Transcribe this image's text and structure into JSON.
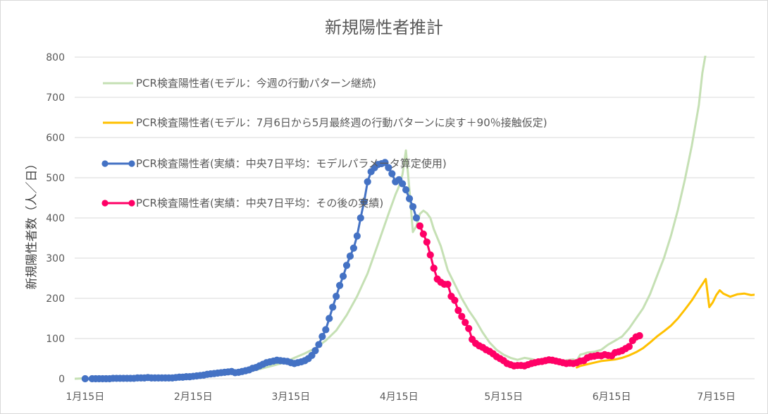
{
  "chart_data": {
    "type": "line",
    "title": "新規陽性者推計",
    "ylabel": "新規陽性者数（人／日）",
    "xlabel": "",
    "ylim": [
      0,
      800
    ],
    "y_ticks": [
      0,
      100,
      200,
      300,
      400,
      500,
      600,
      700,
      800
    ],
    "x_ticks": [
      {
        "label": "1月15日",
        "day": 0
      },
      {
        "label": "2月15日",
        "day": 31
      },
      {
        "label": "3月15日",
        "day": 59
      },
      {
        "label": "4月15日",
        "day": 90
      },
      {
        "label": "5月15日",
        "day": 120
      },
      {
        "label": "6月15日",
        "day": 151
      },
      {
        "label": "7月15日",
        "day": 181
      }
    ],
    "xlim_days": [
      -3,
      192
    ],
    "grid": "horizontal",
    "legend_position": "top-left inside",
    "series": [
      {
        "name": "PCR検査陽性者(モデル：今週の行動パターン継続)",
        "color": "#c5e0b4",
        "style": "line",
        "points": [
          [
            -3,
            0
          ],
          [
            0,
            1
          ],
          [
            10,
            2
          ],
          [
            20,
            3
          ],
          [
            30,
            5
          ],
          [
            40,
            11
          ],
          [
            46,
            16
          ],
          [
            50,
            24
          ],
          [
            54,
            33
          ],
          [
            57,
            40
          ],
          [
            60,
            52
          ],
          [
            63,
            63
          ],
          [
            66,
            76
          ],
          [
            69,
            95
          ],
          [
            72,
            120
          ],
          [
            75,
            158
          ],
          [
            78,
            205
          ],
          [
            81,
            262
          ],
          [
            84,
            335
          ],
          [
            87,
            410
          ],
          [
            89,
            458
          ],
          [
            90,
            478
          ],
          [
            91,
            508
          ],
          [
            92,
            568
          ],
          [
            93,
            470
          ],
          [
            94,
            365
          ],
          [
            95,
            380
          ],
          [
            96,
            410
          ],
          [
            97,
            418
          ],
          [
            98,
            412
          ],
          [
            99,
            400
          ],
          [
            100,
            372
          ],
          [
            102,
            330
          ],
          [
            104,
            270
          ],
          [
            106,
            235
          ],
          [
            108,
            200
          ],
          [
            110,
            170
          ],
          [
            112,
            145
          ],
          [
            114,
            115
          ],
          [
            116,
            90
          ],
          [
            118,
            72
          ],
          [
            120,
            60
          ],
          [
            122,
            52
          ],
          [
            124,
            47
          ],
          [
            126,
            52
          ],
          [
            128,
            49
          ],
          [
            130,
            44
          ],
          [
            132,
            41
          ],
          [
            134,
            40
          ],
          [
            136,
            42
          ],
          [
            138,
            46
          ],
          [
            140,
            48
          ],
          [
            141,
            45
          ],
          [
            142,
            60
          ],
          [
            143,
            62
          ],
          [
            144,
            65
          ],
          [
            146,
            67
          ],
          [
            148,
            72
          ],
          [
            150,
            85
          ],
          [
            152,
            95
          ],
          [
            154,
            105
          ],
          [
            156,
            125
          ],
          [
            158,
            150
          ],
          [
            160,
            175
          ],
          [
            162,
            210
          ],
          [
            164,
            255
          ],
          [
            166,
            300
          ],
          [
            168,
            355
          ],
          [
            170,
            420
          ],
          [
            172,
            495
          ],
          [
            174,
            580
          ],
          [
            176,
            680
          ],
          [
            177,
            760
          ],
          [
            178,
            810
          ]
        ]
      },
      {
        "name": "PCR検査陽性者(モデル：7月6日から5月最終週の行動パターンに戻す＋90％接触仮定)",
        "color": "#ffc000",
        "style": "line",
        "points": [
          [
            141,
            28
          ],
          [
            142,
            32
          ],
          [
            144,
            36
          ],
          [
            146,
            40
          ],
          [
            148,
            44
          ],
          [
            150,
            46
          ],
          [
            152,
            48
          ],
          [
            154,
            52
          ],
          [
            156,
            58
          ],
          [
            158,
            66
          ],
          [
            160,
            76
          ],
          [
            162,
            90
          ],
          [
            164,
            105
          ],
          [
            166,
            118
          ],
          [
            168,
            132
          ],
          [
            170,
            150
          ],
          [
            172,
            172
          ],
          [
            174,
            195
          ],
          [
            176,
            222
          ],
          [
            178,
            248
          ],
          [
            179,
            178
          ],
          [
            180,
            190
          ],
          [
            181,
            208
          ],
          [
            182,
            220
          ],
          [
            183,
            212
          ],
          [
            185,
            204
          ],
          [
            187,
            210
          ],
          [
            189,
            212
          ],
          [
            191,
            208
          ],
          [
            193,
            210
          ]
        ]
      },
      {
        "name": "PCR検査陽性者(実績：中央7日平均：モデルパラメータ算定使用)",
        "color": "#4472c4",
        "style": "line-marker",
        "points": [
          [
            0,
            0
          ],
          [
            2,
            0
          ],
          [
            3,
            0
          ],
          [
            4,
            0
          ],
          [
            5,
            0
          ],
          [
            6,
            0
          ],
          [
            7,
            0
          ],
          [
            8,
            1
          ],
          [
            9,
            1
          ],
          [
            10,
            1
          ],
          [
            11,
            1
          ],
          [
            12,
            1
          ],
          [
            13,
            1
          ],
          [
            14,
            1
          ],
          [
            15,
            2
          ],
          [
            16,
            2
          ],
          [
            17,
            2
          ],
          [
            18,
            3
          ],
          [
            19,
            2
          ],
          [
            20,
            2
          ],
          [
            21,
            2
          ],
          [
            22,
            2
          ],
          [
            23,
            2
          ],
          [
            24,
            2
          ],
          [
            25,
            2
          ],
          [
            26,
            3
          ],
          [
            27,
            4
          ],
          [
            28,
            4
          ],
          [
            29,
            5
          ],
          [
            30,
            5
          ],
          [
            31,
            6
          ],
          [
            32,
            7
          ],
          [
            33,
            8
          ],
          [
            34,
            9
          ],
          [
            35,
            11
          ],
          [
            36,
            12
          ],
          [
            37,
            13
          ],
          [
            38,
            14
          ],
          [
            39,
            15
          ],
          [
            40,
            16
          ],
          [
            41,
            17
          ],
          [
            42,
            18
          ],
          [
            43,
            15
          ],
          [
            44,
            16
          ],
          [
            45,
            18
          ],
          [
            46,
            20
          ],
          [
            47,
            22
          ],
          [
            48,
            26
          ],
          [
            49,
            28
          ],
          [
            50,
            32
          ],
          [
            51,
            36
          ],
          [
            52,
            40
          ],
          [
            53,
            42
          ],
          [
            54,
            44
          ],
          [
            55,
            46
          ],
          [
            56,
            45
          ],
          [
            57,
            44
          ],
          [
            58,
            43
          ],
          [
            59,
            40
          ],
          [
            60,
            38
          ],
          [
            61,
            40
          ],
          [
            62,
            42
          ],
          [
            63,
            45
          ],
          [
            64,
            50
          ],
          [
            65,
            58
          ],
          [
            66,
            70
          ],
          [
            67,
            85
          ],
          [
            68,
            105
          ],
          [
            69,
            122
          ],
          [
            70,
            150
          ],
          [
            71,
            178
          ],
          [
            72,
            205
          ],
          [
            73,
            232
          ],
          [
            74,
            255
          ],
          [
            75,
            282
          ],
          [
            76,
            305
          ],
          [
            77,
            325
          ],
          [
            78,
            355
          ],
          [
            79,
            400
          ],
          [
            80,
            440
          ],
          [
            81,
            490
          ],
          [
            82,
            515
          ],
          [
            83,
            525
          ],
          [
            84,
            533
          ],
          [
            85,
            535
          ],
          [
            86,
            538
          ],
          [
            87,
            525
          ],
          [
            88,
            510
          ],
          [
            89,
            490
          ],
          [
            90,
            495
          ],
          [
            91,
            485
          ],
          [
            92,
            470
          ],
          [
            93,
            448
          ],
          [
            94,
            428
          ],
          [
            95,
            400
          ]
        ]
      },
      {
        "name": "PCR検査陽性者(実績：中央7日平均：その後の実績)",
        "color": "#ff0066",
        "style": "line-marker",
        "points": [
          [
            96,
            380
          ],
          [
            97,
            360
          ],
          [
            98,
            340
          ],
          [
            99,
            308
          ],
          [
            100,
            275
          ],
          [
            101,
            248
          ],
          [
            102,
            240
          ],
          [
            103,
            235
          ],
          [
            104,
            235
          ],
          [
            105,
            205
          ],
          [
            106,
            195
          ],
          [
            107,
            170
          ],
          [
            108,
            155
          ],
          [
            109,
            140
          ],
          [
            110,
            125
          ],
          [
            111,
            98
          ],
          [
            112,
            88
          ],
          [
            113,
            82
          ],
          [
            114,
            78
          ],
          [
            115,
            72
          ],
          [
            116,
            68
          ],
          [
            117,
            62
          ],
          [
            118,
            55
          ],
          [
            119,
            50
          ],
          [
            120,
            45
          ],
          [
            121,
            38
          ],
          [
            122,
            35
          ],
          [
            123,
            32
          ],
          [
            124,
            33
          ],
          [
            125,
            33
          ],
          [
            126,
            32
          ],
          [
            127,
            35
          ],
          [
            128,
            38
          ],
          [
            129,
            40
          ],
          [
            130,
            42
          ],
          [
            131,
            43
          ],
          [
            132,
            45
          ],
          [
            133,
            47
          ],
          [
            134,
            46
          ],
          [
            135,
            44
          ],
          [
            136,
            42
          ],
          [
            137,
            40
          ],
          [
            138,
            38
          ],
          [
            139,
            39
          ],
          [
            140,
            38
          ],
          [
            141,
            40
          ],
          [
            142,
            44
          ],
          [
            143,
            45
          ],
          [
            144,
            52
          ],
          [
            145,
            55
          ],
          [
            146,
            56
          ],
          [
            147,
            58
          ],
          [
            148,
            57
          ],
          [
            149,
            60
          ],
          [
            150,
            58
          ],
          [
            151,
            57
          ],
          [
            152,
            65
          ],
          [
            153,
            67
          ],
          [
            154,
            70
          ],
          [
            155,
            75
          ],
          [
            156,
            80
          ],
          [
            157,
            95
          ],
          [
            158,
            104
          ],
          [
            159,
            107
          ]
        ]
      }
    ]
  }
}
